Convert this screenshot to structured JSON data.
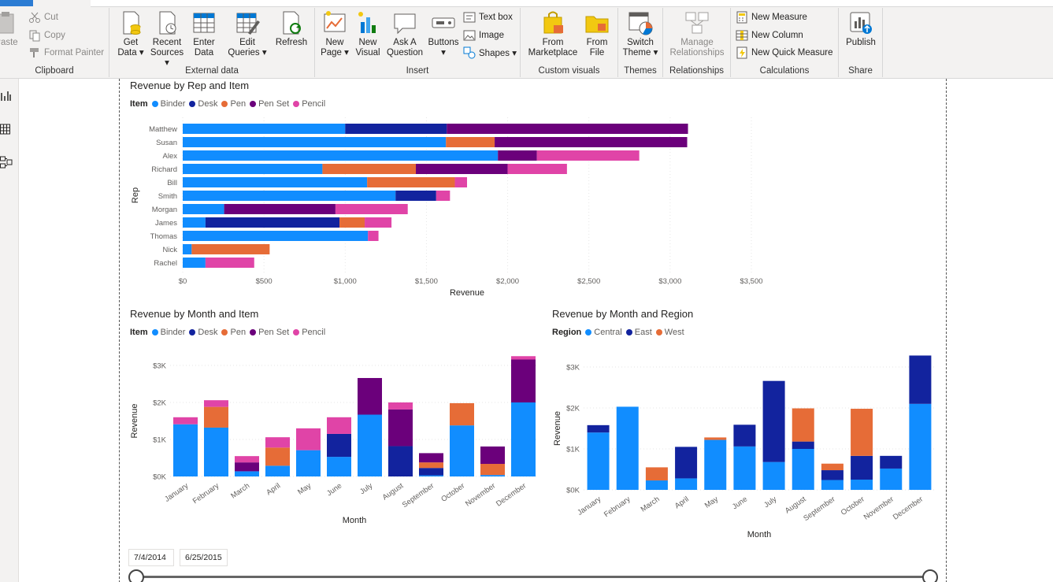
{
  "ribbon": {
    "clipboard": {
      "label": "Clipboard",
      "paste": "Paste",
      "cut": "Cut",
      "copy": "Copy",
      "format_painter": "Format Painter"
    },
    "external_data": {
      "label": "External data",
      "get_data": [
        "Get",
        "Data ▾"
      ],
      "recent_sources": [
        "Recent",
        "Sources ▾"
      ],
      "enter_data": [
        "Enter",
        "Data"
      ],
      "edit_queries": [
        "Edit",
        "Queries ▾"
      ],
      "refresh": "Refresh"
    },
    "insert": {
      "label": "Insert",
      "new_page": [
        "New",
        "Page ▾"
      ],
      "new_visual": [
        "New",
        "Visual"
      ],
      "ask_question": [
        "Ask A",
        "Question"
      ],
      "buttons": [
        "Buttons",
        "▾"
      ],
      "text_box": "Text box",
      "image": "Image",
      "shapes": "Shapes ▾"
    },
    "custom_visuals": {
      "label": "Custom visuals",
      "from_marketplace": [
        "From",
        "Marketplace"
      ],
      "from_file": [
        "From",
        "File"
      ]
    },
    "themes": {
      "label": "Themes",
      "switch_theme": [
        "Switch",
        "Theme ▾"
      ]
    },
    "relationships": {
      "label": "Relationships",
      "manage": [
        "Manage",
        "Relationships"
      ]
    },
    "calculations": {
      "label": "Calculations",
      "new_measure": "New Measure",
      "new_column": "New Column",
      "new_quick_measure": "New Quick Measure"
    },
    "share": {
      "label": "Share",
      "publish": "Publish"
    }
  },
  "colors": {
    "binder": "#118dff",
    "desk": "#12239e",
    "pen": "#e66c37",
    "penset": "#6b007b",
    "pencil": "#e044a7"
  },
  "chart_data": [
    {
      "type": "bar",
      "orientation": "horizontal",
      "stacked": true,
      "title": "Revenue by Rep and Item",
      "legend_title": "Item",
      "xlabel": "Revenue",
      "ylabel": "Rep",
      "xlim": [
        0,
        3500
      ],
      "xticks": [
        "$0",
        "$500",
        "$1,000",
        "$1,500",
        "$2,000",
        "$2,500",
        "$3,000",
        "$3,500"
      ],
      "categories": [
        "Matthew",
        "Susan",
        "Alex",
        "Richard",
        "Bill",
        "Smith",
        "Morgan",
        "James",
        "Thomas",
        "Nick",
        "Rachel"
      ],
      "series": [
        {
          "name": "Binder",
          "values": [
            1000,
            1620,
            1940,
            860,
            1135,
            1310,
            255,
            140,
            1140,
            55,
            140
          ]
        },
        {
          "name": "Desk",
          "values": [
            625,
            0,
            0,
            0,
            0,
            250,
            0,
            825,
            0,
            0,
            0
          ]
        },
        {
          "name": "Pen",
          "values": [
            0,
            300,
            0,
            575,
            540,
            0,
            0,
            155,
            0,
            480,
            0
          ]
        },
        {
          "name": "Pen Set",
          "values": [
            1485,
            1185,
            240,
            565,
            0,
            0,
            685,
            0,
            0,
            0,
            0
          ]
        },
        {
          "name": "Pencil",
          "values": [
            0,
            0,
            630,
            365,
            75,
            85,
            445,
            165,
            65,
            0,
            300
          ]
        }
      ]
    },
    {
      "type": "bar",
      "stacked": true,
      "title": "Revenue by Month and Item",
      "legend_title": "Item",
      "xlabel": "Month",
      "ylabel": "Revenue",
      "ylim": [
        0,
        3000
      ],
      "yticks": [
        "$0K",
        "$1K",
        "$2K",
        "$3K"
      ],
      "categories": [
        "January",
        "February",
        "March",
        "April",
        "May",
        "June",
        "July",
        "August",
        "September",
        "October",
        "November",
        "December"
      ],
      "series": [
        {
          "name": "Binder",
          "values": [
            1410,
            1320,
            140,
            290,
            710,
            530,
            1670,
            0,
            30,
            1380,
            40,
            2000
          ]
        },
        {
          "name": "Desk",
          "values": [
            0,
            0,
            0,
            0,
            0,
            620,
            0,
            820,
            200,
            0,
            0,
            0
          ]
        },
        {
          "name": "Pen",
          "values": [
            0,
            560,
            0,
            490,
            0,
            0,
            0,
            0,
            150,
            600,
            300,
            0
          ]
        },
        {
          "name": "Pen Set",
          "values": [
            0,
            0,
            240,
            0,
            0,
            0,
            990,
            990,
            250,
            0,
            470,
            1160
          ]
        },
        {
          "name": "Pencil",
          "values": [
            190,
            180,
            170,
            280,
            590,
            450,
            0,
            190,
            0,
            0,
            0,
            90
          ]
        }
      ]
    },
    {
      "type": "bar",
      "stacked": true,
      "title": "Revenue by Month and Region",
      "legend_title": "Region",
      "xlabel": "Month",
      "ylabel": "Revenue",
      "ylim": [
        0,
        3000
      ],
      "yticks": [
        "$0K",
        "$1K",
        "$2K",
        "$3K"
      ],
      "categories": [
        "January",
        "February",
        "March",
        "April",
        "May",
        "June",
        "July",
        "August",
        "September",
        "October",
        "November",
        "December"
      ],
      "series": [
        {
          "name": "Central",
          "values": [
            1400,
            2030,
            230,
            280,
            1220,
            1060,
            680,
            1000,
            240,
            250,
            520,
            2100
          ]
        },
        {
          "name": "East",
          "values": [
            180,
            0,
            0,
            770,
            0,
            530,
            1980,
            180,
            240,
            580,
            310,
            1180
          ]
        },
        {
          "name": "West",
          "values": [
            0,
            0,
            320,
            0,
            60,
            0,
            0,
            810,
            160,
            1150,
            0,
            0
          ]
        }
      ]
    }
  ],
  "slicer": {
    "start_date": "7/4/2014",
    "end_date": "6/25/2015"
  }
}
